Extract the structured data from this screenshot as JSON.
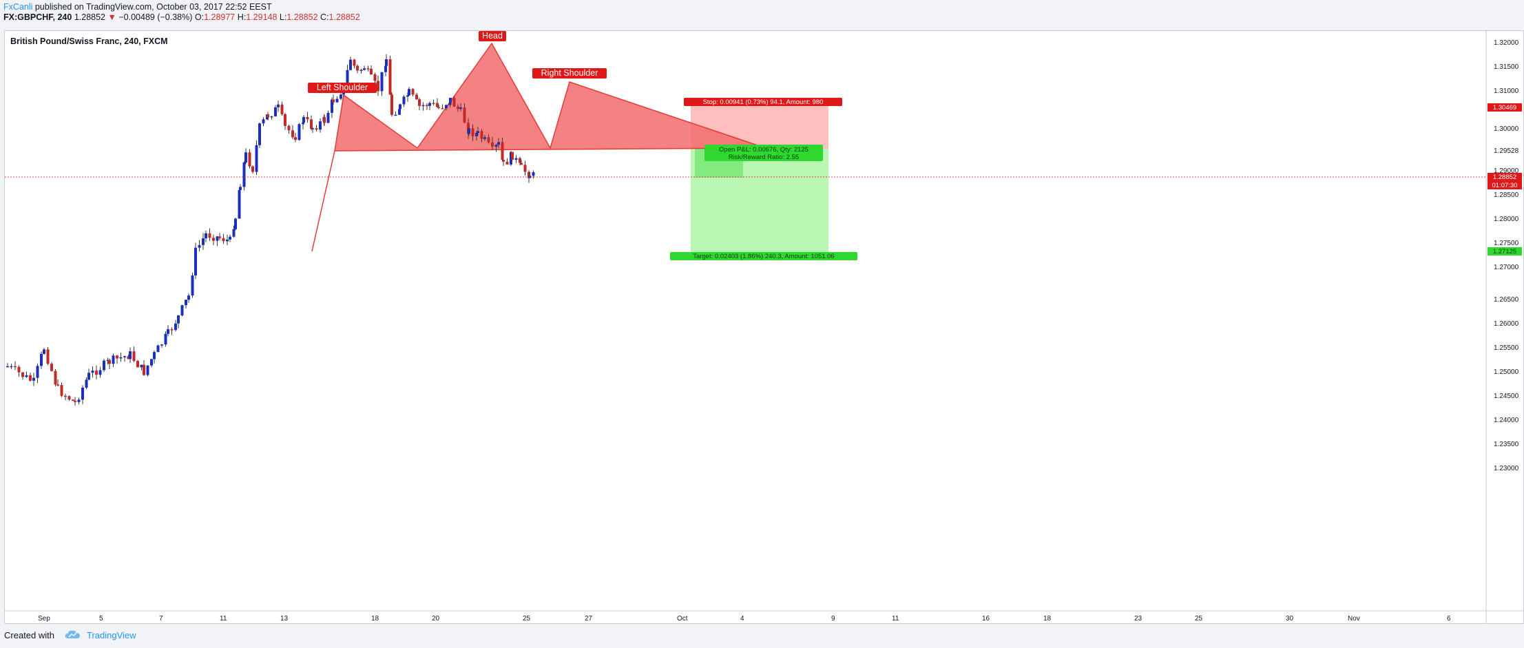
{
  "publish": {
    "author": "FxCanli",
    "text": "published on TradingView.com, October 03, 2017 22:52 EEST"
  },
  "quote": {
    "symbol": "FX:GBPCHF, 240",
    "last": "1.28852",
    "change": "−0.00489 (−0.38%)",
    "o_label": "O:",
    "o": "1.28977",
    "h_label": "H:",
    "h": "1.29148",
    "l_label": "L:",
    "l": "1.28852",
    "c_label": "C:",
    "c": "1.28852"
  },
  "chart": {
    "title": "British Pound/Swiss Franc, 240, FXCM",
    "price_axis_labels": [
      "1.32000",
      "1.31500",
      "1.31000",
      "1.30000",
      "1.29528",
      "1.29000",
      "1.28500",
      "1.28000",
      "1.27500",
      "1.27000",
      "1.26500",
      "1.26000",
      "1.25500",
      "1.25000",
      "1.24500",
      "1.24000",
      "1.23500",
      "1.23000"
    ],
    "time_axis_labels": [
      "Sep",
      "5",
      "7",
      "11",
      "13",
      "18",
      "20",
      "25",
      "27",
      "Oct",
      "4",
      "9",
      "11",
      "16",
      "18",
      "23",
      "25",
      "30",
      "Nov",
      "6"
    ],
    "last_price_badge": "1.28852",
    "countdown_badge": "01:07:30",
    "stop_badge": "1.30469",
    "target_badge": "1.27125",
    "annotations": {
      "left_shoulder": "Left Shoulder",
      "head": "Head",
      "right_shoulder": "Right Shoulder"
    },
    "position": {
      "stop_label": "Stop: 0.00941 (0.73%) 94.1, Amount: 980",
      "pnl_label": "Open P&L: 0.00676, Qty: 2125",
      "rr_label": "Risk/Reward Ratio: 2.55",
      "target_label": "Target: 0.02403 (1.86%) 240.3, Amount: 1051.06"
    },
    "colors": {
      "up_candle": "#1a2fbd",
      "down_candle": "#c62828",
      "pattern_fill": "#f26c6c",
      "stop_zone": "#ffbcbc",
      "target_zone": "#b6f5b0",
      "stop_badge": "#e01818",
      "target_badge": "#2fd72f"
    }
  },
  "footer": {
    "created_with": "Created with",
    "brand": "TradingView"
  }
}
